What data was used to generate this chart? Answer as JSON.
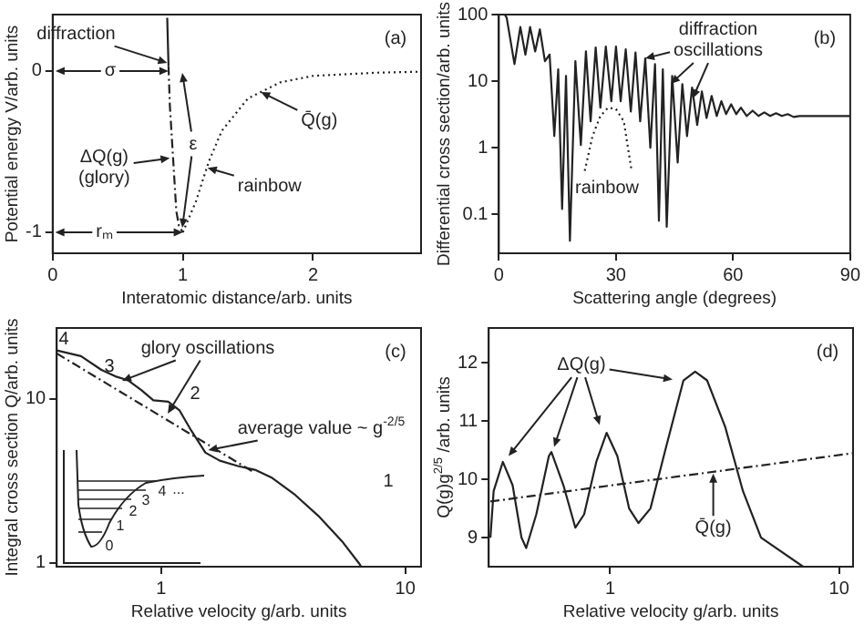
{
  "chart_data": [
    {
      "type": "line",
      "xlabel": "Interatomic distance/arb. units",
      "ylabel": "Potential energy V/arb. units",
      "xlim": [
        0,
        2.83
      ],
      "ylim": [
        -1.13,
        0.35
      ],
      "xticks": [
        0,
        1,
        2
      ],
      "yticks": [
        -1,
        0
      ],
      "series": [
        {
          "color": "#222222",
          "line_style": "solid",
          "x": [
            0.88,
            0.89
          ],
          "values": [
            0.33,
            0.03
          ]
        },
        {
          "color": "#222222",
          "line_style": "dashed",
          "x": [
            0.89,
            0.9,
            0.95,
            0.97,
            1.0
          ],
          "values": [
            0.03,
            -0.21,
            -0.87,
            -0.96,
            -1
          ]
        },
        {
          "color": "#222222",
          "line_style": "dotted",
          "x": [
            1.0,
            1.1,
            1.2,
            1.3,
            1.5,
            1.75,
            2,
            2.5,
            2.83
          ],
          "values": [
            -1,
            -0.81,
            -0.56,
            -0.37,
            -0.17,
            -0.07,
            -0.03,
            -0.01,
            -0.004
          ]
        }
      ],
      "annotations": [
        "(a)",
        {
          "text": "diffraction",
          "x": 0.88,
          "y": 0.05
        },
        {
          "text": "σ",
          "x": 0.89,
          "y": 0
        },
        "ε",
        {
          "text": "ΔQ(g)\n(glory)",
          "x": 0.9,
          "y": -0.54
        },
        {
          "text": "rainbow",
          "x": 1.19,
          "y": -0.6
        },
        {
          "text": "Q̄(g)",
          "x": 1.6,
          "y": -0.13
        },
        {
          "text": "rₘ",
          "x": 1,
          "y": -1
        }
      ]
    },
    {
      "type": "line",
      "xlabel": "Scattering angle (degrees)",
      "ylabel": "Differential cross section/arb. units",
      "log": "y",
      "xlim": [
        0,
        90
      ],
      "ylim": [
        0.026,
        100
      ],
      "xticks": [
        0,
        30,
        60,
        90
      ],
      "yticks": [
        0.1,
        1,
        10,
        100
      ],
      "series": [
        {
          "color": "#222222",
          "line_style": "solid",
          "x": [
            1.5,
            2,
            4,
            5.5,
            6.8,
            8,
            9.3,
            10.5,
            11.8,
            13,
            14.2,
            15.2,
            16.2,
            17.2,
            18.2,
            19.6,
            21,
            22.3,
            23.5,
            24.8,
            26,
            27.4,
            28.8,
            30,
            31.2,
            32.5,
            33.8,
            35,
            36.2,
            37.5,
            38.8,
            40,
            41,
            42,
            43,
            44.4,
            45.8,
            47,
            48.2,
            49.5,
            50.8,
            52,
            53.2,
            54.5,
            55.8,
            57,
            58.2,
            59.5,
            60.8,
            62,
            63.5,
            65,
            66.5,
            68,
            69.5,
            71,
            72.5,
            74,
            75.5,
            77,
            90
          ],
          "values": [
            100,
            90,
            18,
            65,
            25,
            65,
            28,
            60,
            20,
            25,
            1.5,
            15,
            0.12,
            12,
            0.04,
            20,
            1.1,
            28,
            2.5,
            32,
            4,
            33,
            5,
            33,
            5,
            30,
            3.5,
            27,
            2.5,
            22,
            1.0,
            18,
            0.08,
            15,
            0.065,
            12,
            0.6,
            9,
            1.5,
            8,
            2.2,
            7,
            2.8,
            6,
            3,
            5,
            3.2,
            4.5,
            3.2,
            4,
            3,
            3.6,
            3,
            3.4,
            3,
            3.3,
            3,
            3.2,
            2.9,
            3,
            3
          ]
        },
        {
          "color": "#222222",
          "line_style": "dotted",
          "x": [
            22,
            24,
            26,
            28,
            30,
            32,
            34
          ],
          "values": [
            0.45,
            1.5,
            3,
            4,
            3.8,
            2.5,
            0.45
          ]
        }
      ],
      "annotations": [
        "(b)",
        {
          "text": "diffraction\noscillations",
          "x": 37.5,
          "y": 22
        },
        "rainbow"
      ]
    },
    {
      "type": "line",
      "xlabel": "Relative velocity g/arb. units",
      "ylabel": "Integral cross section Q/arb. units",
      "log": "xy",
      "xlim": [
        0.374,
        11.6
      ],
      "ylim": [
        0.95,
        27
      ],
      "xticks": [
        1,
        10
      ],
      "yticks": [
        1,
        10
      ],
      "series": [
        {
          "color": "#222222",
          "line_style": "solid",
          "x": [
            0.374,
            0.47,
            0.57,
            0.65,
            0.73,
            0.83,
            0.93,
            1.07,
            1.19,
            1.33,
            1.52,
            1.74,
            2.06,
            2.42,
            2.85,
            3.54,
            4.4,
            5.5,
            6.45,
            6.6
          ],
          "values": [
            19.7,
            18.2,
            15,
            13.7,
            13,
            11.3,
            9.8,
            9.6,
            8.5,
            6.4,
            4.7,
            4.2,
            3.9,
            3.7,
            3.3,
            2.6,
            1.94,
            1.36,
            1.0,
            0.95
          ]
        },
        {
          "color": "#222222",
          "line_style": "dashed",
          "x": [
            0.374,
            2.42
          ],
          "values": [
            18.9,
            3.54
          ]
        }
      ],
      "annotations": [
        "(c)",
        "0",
        "1",
        "2",
        "3",
        "4",
        "...",
        "4",
        "3",
        "2",
        "1",
        "glory oscillations",
        {
          "text": "average value ~ g$^{-2/5}$",
          "x": 1.56,
          "y": 4.87
        }
      ]
    },
    {
      "type": "line",
      "xlabel": "Relative velocity g/arb. units",
      "ylabel": "Q(g)g$^{2/5}$ /arb. units",
      "log": "x",
      "xlim": [
        0.295,
        11.5
      ],
      "ylim": [
        8.5,
        12.6
      ],
      "xticks": [
        1,
        10
      ],
      "yticks": [
        9,
        10,
        11,
        12
      ],
      "series": [
        {
          "color": "#222222",
          "line_style": "solid",
          "x": [
            0.3,
            0.31,
            0.34,
            0.375,
            0.41,
            0.43,
            0.476,
            0.54,
            0.554,
            0.625,
            0.705,
            0.77,
            0.87,
            0.965,
            1.075,
            1.21,
            1.33,
            1.5,
            1.74,
            2.09,
            2.35,
            2.65,
            3.18,
            3.8,
            4.56,
            6.96
          ],
          "values": [
            9.0,
            9.8,
            10.3,
            9.9,
            9.0,
            8.82,
            9.4,
            10.4,
            10.47,
            9.9,
            9.17,
            9.4,
            10.3,
            10.8,
            10.4,
            9.5,
            9.25,
            9.5,
            10.5,
            11.7,
            11.85,
            11.7,
            10.9,
            9.8,
            9.0,
            8.5
          ]
        },
        {
          "color": "#222222",
          "line_style": "dashed",
          "x": [
            0.3,
            11.5
          ],
          "values": [
            9.62,
            10.45
          ]
        }
      ],
      "annotations": [
        "(d)",
        {
          "text": "ΔQ(g)",
          "x": 0.36,
          "y": 10.4
        },
        {
          "text": "Q̄(g)",
          "x": 2.82,
          "y": 10.1
        }
      ]
    }
  ]
}
